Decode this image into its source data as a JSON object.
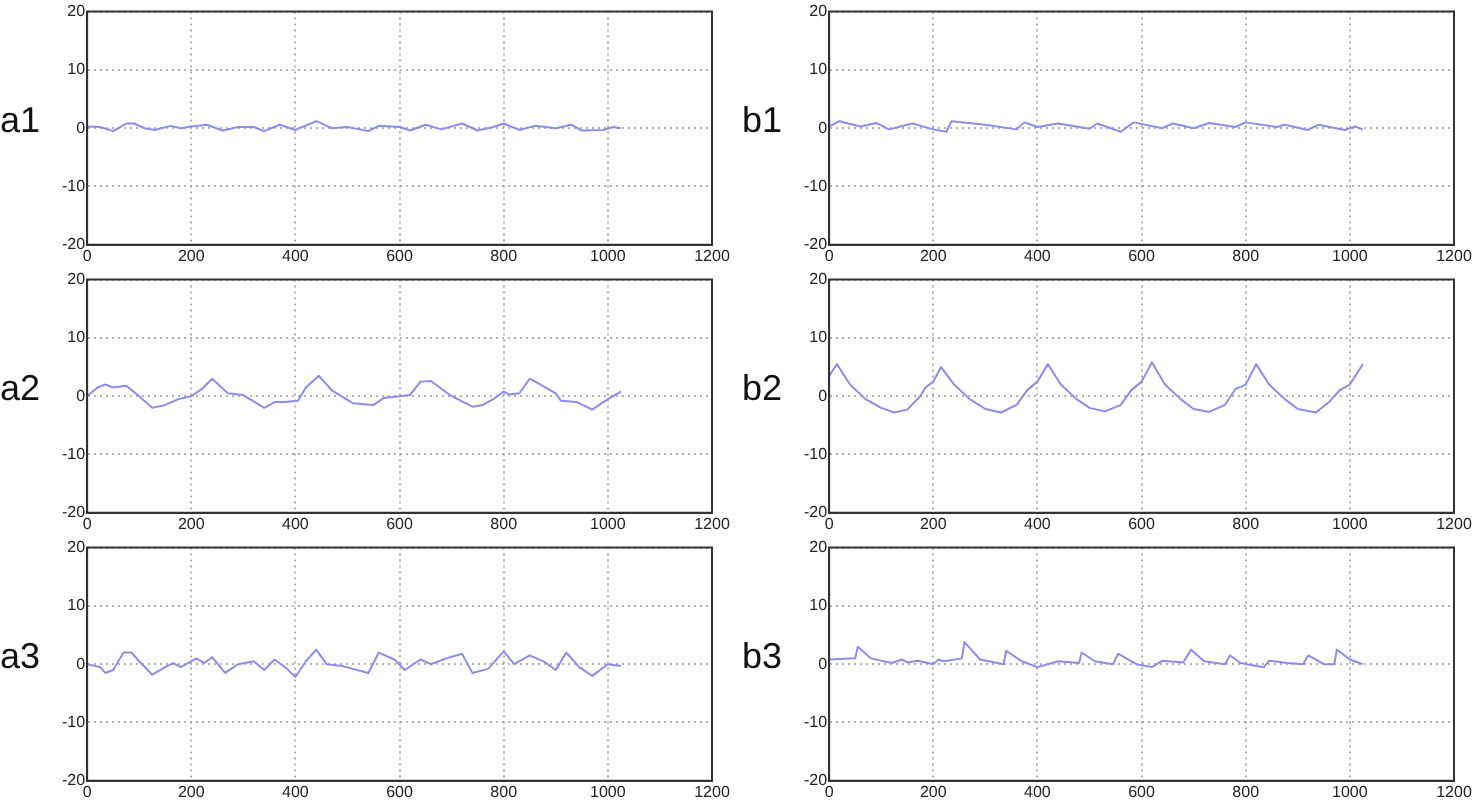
{
  "chart_data": [
    {
      "type": "line",
      "annotations": [
        "a1"
      ],
      "color": "#8c8cf0",
      "grid": true,
      "xlim": [
        0,
        1200
      ],
      "ylim": [
        -20,
        20
      ],
      "xticks": [
        0,
        200,
        400,
        600,
        800,
        1000,
        1200
      ],
      "yticks": [
        -20,
        -10,
        0,
        10,
        20
      ],
      "x": [
        0,
        25,
        50,
        75,
        90,
        110,
        130,
        160,
        180,
        200,
        230,
        260,
        290,
        320,
        340,
        370,
        400,
        440,
        470,
        500,
        540,
        560,
        600,
        620,
        650,
        680,
        720,
        750,
        780,
        800,
        830,
        860,
        900,
        930,
        950,
        990,
        1010,
        1025
      ],
      "values": [
        0.3,
        0.2,
        -0.5,
        0.8,
        0.8,
        0,
        -0.3,
        0.4,
        0,
        0.3,
        0.6,
        -0.4,
        0.2,
        0.2,
        -0.5,
        0.6,
        -0.3,
        1.2,
        0,
        0.2,
        -0.5,
        0.4,
        0.2,
        -0.4,
        0.6,
        -0.2,
        0.8,
        -0.4,
        0.2,
        0.8,
        -0.3,
        0.4,
        0,
        0.6,
        -0.4,
        -0.3,
        0.2,
        0
      ]
    },
    {
      "type": "line",
      "annotations": [
        "b1"
      ],
      "color": "#8c8cf0",
      "grid": true,
      "xlim": [
        0,
        1200
      ],
      "ylim": [
        -20,
        20
      ],
      "xticks": [
        0,
        200,
        400,
        600,
        800,
        1000,
        1200
      ],
      "yticks": [
        -20,
        -10,
        0,
        10,
        20
      ],
      "x": [
        0,
        20,
        60,
        90,
        115,
        160,
        200,
        225,
        235,
        300,
        360,
        375,
        400,
        440,
        500,
        515,
        560,
        585,
        640,
        660,
        700,
        730,
        780,
        800,
        860,
        875,
        920,
        940,
        990,
        1010,
        1025
      ],
      "values": [
        0.3,
        1.2,
        0.3,
        0.9,
        -0.2,
        0.8,
        -0.2,
        -0.6,
        1.2,
        0.6,
        -0.2,
        1,
        0.2,
        0.8,
        -0.1,
        0.8,
        -0.6,
        1,
        0,
        0.8,
        0,
        0.9,
        0.2,
        1,
        0.2,
        0.6,
        -0.3,
        0.6,
        -0.3,
        0.3,
        -0.2
      ]
    },
    {
      "type": "line",
      "annotations": [
        "a2"
      ],
      "color": "#8c8cf0",
      "grid": true,
      "xlim": [
        0,
        1200
      ],
      "ylim": [
        -20,
        20
      ],
      "xticks": [
        0,
        200,
        400,
        600,
        800,
        1000,
        1200
      ],
      "yticks": [
        -20,
        -10,
        0,
        10,
        20
      ],
      "x": [
        0,
        20,
        35,
        50,
        75,
        100,
        125,
        150,
        175,
        200,
        220,
        240,
        270,
        300,
        340,
        360,
        380,
        405,
        420,
        445,
        470,
        510,
        550,
        570,
        600,
        620,
        640,
        660,
        700,
        740,
        760,
        780,
        800,
        810,
        830,
        850,
        880,
        900,
        910,
        940,
        970,
        1000,
        1025
      ],
      "values": [
        0,
        1.5,
        2,
        1.5,
        1.8,
        0,
        -2,
        -1.5,
        -0.5,
        0,
        1.2,
        3,
        0.5,
        0.2,
        -2,
        -1,
        -1,
        -0.8,
        1.5,
        3.5,
        1,
        -1.2,
        -1.5,
        -0.3,
        0,
        0.2,
        2.5,
        2.6,
        0,
        -1.8,
        -1.5,
        -0.5,
        0.8,
        0.3,
        0.5,
        3,
        1.5,
        0.5,
        -0.8,
        -1,
        -2.3,
        -0.5,
        0.8
      ]
    },
    {
      "type": "line",
      "annotations": [
        "b2"
      ],
      "color": "#8c8cf0",
      "grid": true,
      "xlim": [
        0,
        1200
      ],
      "ylim": [
        -20,
        20
      ],
      "xticks": [
        0,
        200,
        400,
        600,
        800,
        1000,
        1200
      ],
      "yticks": [
        -20,
        -10,
        0,
        10,
        20
      ],
      "x": [
        0,
        15,
        40,
        70,
        100,
        125,
        150,
        175,
        185,
        200,
        215,
        240,
        270,
        300,
        330,
        360,
        380,
        400,
        420,
        445,
        475,
        500,
        530,
        560,
        580,
        600,
        620,
        645,
        675,
        700,
        730,
        760,
        780,
        800,
        820,
        845,
        875,
        900,
        935,
        960,
        980,
        1000,
        1025
      ],
      "values": [
        3.5,
        5.5,
        2,
        -0.5,
        -2,
        -2.8,
        -2.3,
        0,
        1.5,
        2.5,
        5,
        2,
        -0.5,
        -2.2,
        -2.8,
        -1.5,
        1,
        2.5,
        5.5,
        2,
        -0.5,
        -2,
        -2.6,
        -1.5,
        1,
        2.5,
        5.8,
        2,
        -0.5,
        -2.2,
        -2.7,
        -1.5,
        1.2,
        2,
        5.5,
        2,
        -0.5,
        -2.2,
        -2.8,
        -1,
        1,
        2,
        5.5
      ]
    },
    {
      "type": "line",
      "annotations": [
        "a3"
      ],
      "color": "#8c8cf0",
      "grid": true,
      "xlim": [
        0,
        1200
      ],
      "ylim": [
        -20,
        20
      ],
      "xticks": [
        0,
        200,
        400,
        600,
        800,
        1000,
        1200
      ],
      "yticks": [
        -20,
        -10,
        0,
        10,
        20
      ],
      "x": [
        0,
        25,
        35,
        50,
        70,
        85,
        100,
        125,
        150,
        165,
        180,
        210,
        225,
        240,
        265,
        290,
        320,
        340,
        360,
        380,
        400,
        420,
        440,
        460,
        490,
        510,
        540,
        560,
        590,
        610,
        640,
        660,
        690,
        720,
        740,
        770,
        800,
        820,
        850,
        880,
        900,
        920,
        945,
        970,
        1000,
        1025
      ],
      "values": [
        0,
        -0.5,
        -1.5,
        -1,
        2,
        2,
        0.5,
        -1.8,
        -0.5,
        0.2,
        -0.5,
        1,
        0.2,
        1.2,
        -1.5,
        0,
        0.5,
        -1,
        0.8,
        -0.5,
        -2.2,
        0.5,
        2.5,
        0,
        -0.3,
        -0.8,
        -1.5,
        2,
        0.8,
        -1,
        0.8,
        0,
        1,
        1.8,
        -1.5,
        -0.8,
        2.2,
        0,
        1.5,
        0.3,
        -1,
        2,
        -0.5,
        -2,
        0,
        -0.3
      ]
    },
    {
      "type": "line",
      "annotations": [
        "b3"
      ],
      "color": "#8c8cf0",
      "grid": true,
      "xlim": [
        0,
        1200
      ],
      "ylim": [
        -20,
        20
      ],
      "xticks": [
        0,
        200,
        400,
        600,
        800,
        1000,
        1200
      ],
      "yticks": [
        -20,
        -10,
        0,
        10,
        20
      ],
      "x": [
        0,
        50,
        55,
        80,
        120,
        140,
        150,
        170,
        200,
        210,
        220,
        255,
        260,
        290,
        335,
        340,
        370,
        400,
        420,
        440,
        480,
        485,
        510,
        545,
        555,
        590,
        620,
        640,
        680,
        695,
        720,
        760,
        770,
        790,
        820,
        835,
        845,
        880,
        910,
        920,
        950,
        970,
        975,
        1000,
        1025
      ],
      "values": [
        0.8,
        1,
        3,
        1,
        0.2,
        0.8,
        0.3,
        0.6,
        0,
        0.8,
        0.5,
        1,
        3.8,
        0.8,
        0,
        2.3,
        0.5,
        -0.5,
        0,
        0.5,
        0.2,
        2,
        0.5,
        0,
        1.8,
        0,
        -0.5,
        0.6,
        0.3,
        2.5,
        0.5,
        0,
        1.5,
        0.2,
        -0.3,
        -0.5,
        0.6,
        0.2,
        0,
        1.5,
        0,
        0,
        2.5,
        0.8,
        0
      ]
    }
  ]
}
